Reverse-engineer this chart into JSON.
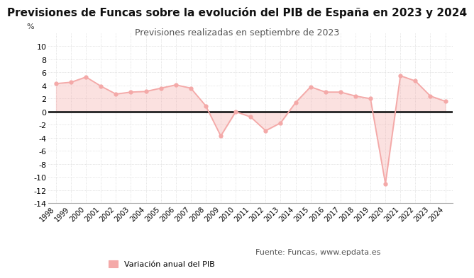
{
  "title": "Previsiones de Funcas sobre la evolución del PIB de España en 2023 y 2024",
  "subtitle": "Previsiones realizadas en septiembre de 2023",
  "ylabel": "%",
  "years": [
    1998,
    1999,
    2000,
    2001,
    2002,
    2003,
    2004,
    2005,
    2006,
    2007,
    2008,
    2009,
    2010,
    2011,
    2012,
    2013,
    2014,
    2015,
    2016,
    2017,
    2018,
    2019,
    2020,
    2021,
    2022,
    2023,
    2024
  ],
  "values": [
    4.3,
    4.5,
    5.3,
    3.9,
    2.7,
    3.0,
    3.1,
    3.6,
    4.1,
    3.6,
    0.9,
    -3.7,
    0.0,
    -0.8,
    -2.9,
    -1.7,
    1.4,
    3.8,
    3.0,
    3.0,
    2.4,
    2.0,
    -11.0,
    5.5,
    4.7,
    2.4,
    1.6
  ],
  "line_color": "#f4a9a8",
  "marker_color": "#f4a9a8",
  "fill_color": "#f4a9a8",
  "zero_line_color": "#222222",
  "background_color": "#ffffff",
  "grid_color": "#cccccc",
  "ylim": [
    -14,
    12
  ],
  "yticks": [
    -14,
    -12,
    -10,
    -8,
    -6,
    -4,
    -2,
    0,
    2,
    4,
    6,
    8,
    10
  ],
  "legend_label": "Variación anual del PIB",
  "source_text": "Fuente: Funcas, www.epdata.es",
  "title_fontsize": 11,
  "subtitle_fontsize": 9,
  "axis_fontsize": 8
}
